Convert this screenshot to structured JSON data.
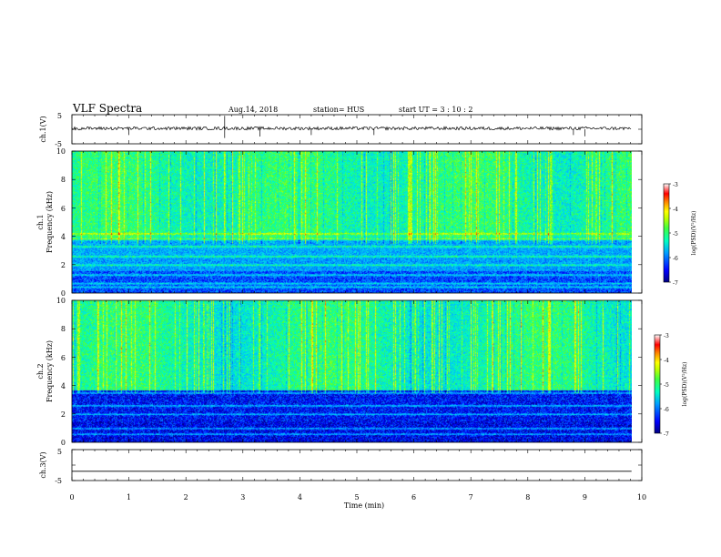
{
  "header": {
    "title": "VLF Spectra",
    "date": "Aug.14, 2018",
    "station": "station= HUS",
    "start": "start  UT =   3  : 10 : 2"
  },
  "chart_data": [
    {
      "type": "line",
      "ylabel": "ch.1(V)",
      "ylim": [
        -5,
        5
      ],
      "yticks": [
        "5",
        "-5"
      ],
      "xlim": [
        0,
        10
      ],
      "description_values": {
        "baseline": 0.3,
        "spikes": [
          [
            2.68,
            4.6
          ],
          [
            2.68,
            -3.0
          ],
          [
            1.0,
            -2.0
          ],
          [
            3.3,
            -2.5
          ],
          [
            4.2,
            -2.0
          ],
          [
            5.3,
            -2.0
          ],
          [
            8.8,
            -2.0
          ],
          [
            9.0,
            -2.4
          ]
        ]
      }
    },
    {
      "type": "heatmap",
      "ylabel": "ch.1\nFrequency (kHz)",
      "ylabel_line1": "ch.1",
      "ylabel_line2": "Frequency (kHz)",
      "ylim": [
        0,
        10
      ],
      "yticks": [
        "0",
        "2",
        "4",
        "6",
        "8",
        "10"
      ],
      "xlim": [
        0,
        10
      ],
      "data_end_min": 9.82,
      "colorbar": {
        "label": "log(PSD)(V²/Hz)",
        "ticks": [
          "-3",
          "-4",
          "-5",
          "-6",
          "-7"
        ],
        "range": [
          -7,
          -3
        ]
      }
    },
    {
      "type": "heatmap",
      "ylabel": "ch.2\nFrequency (kHz)",
      "ylabel_line1": "ch.2",
      "ylabel_line2": "Frequency (kHz)",
      "ylim": [
        0,
        10
      ],
      "yticks": [
        "0",
        "2",
        "4",
        "6",
        "8",
        "10"
      ],
      "xlim": [
        0,
        10
      ],
      "data_end_min": 9.82,
      "colorbar": {
        "label": "log(PSD)(V²/Hz)",
        "ticks": [
          "-3",
          "-4",
          "-5",
          "-6",
          "-7"
        ],
        "range": [
          -7,
          -3
        ]
      }
    },
    {
      "type": "line",
      "ylabel": "ch.3(V)",
      "ylim": [
        -5,
        5
      ],
      "yticks": [
        "5",
        "-5"
      ],
      "xlim": [
        0,
        10
      ],
      "xlabel": "Time  (min)",
      "xticks": [
        "0",
        "1",
        "2",
        "3",
        "4",
        "5",
        "6",
        "7",
        "8",
        "9",
        "10"
      ],
      "description_values": {
        "constant": -2.0
      }
    }
  ],
  "colors": {
    "scale": [
      "#000080",
      "#0000ff",
      "#0080ff",
      "#00c0ff",
      "#00ffc0",
      "#40ff40",
      "#c0ff00",
      "#ffff00",
      "#ff8000",
      "#ff0000",
      "#ffffff"
    ]
  }
}
